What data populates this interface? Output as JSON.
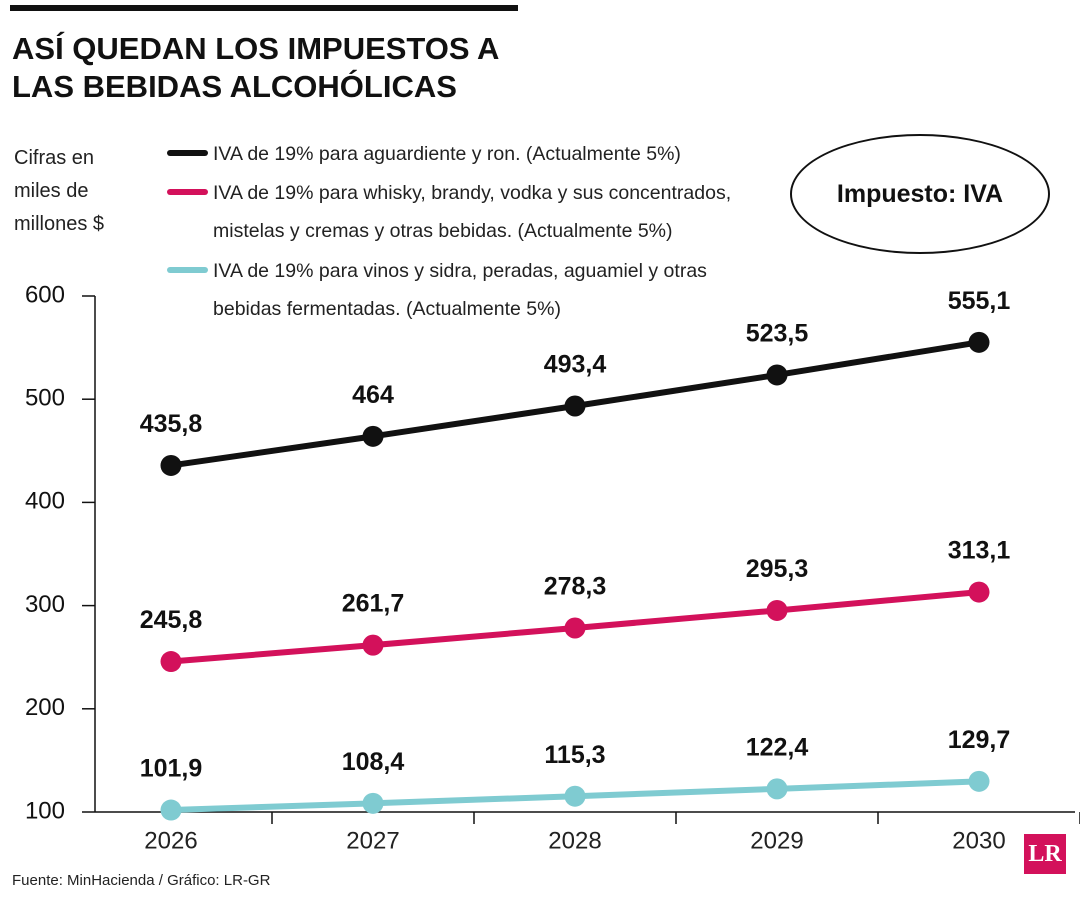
{
  "chart_data": {
    "type": "line",
    "title": "ASÍ QUEDAN LOS IMPUESTOS A LAS BEBIDAS ALCOHÓLICAS",
    "ylabel": "Cifras en miles de millones $",
    "annotation": "Impuesto: IVA",
    "source": "Fuente: MinHacienda / Gráfico: LR-GR",
    "logo": "LR",
    "categories": [
      "2026",
      "2027",
      "2028",
      "2029",
      "2030"
    ],
    "series": [
      {
        "name": "IVA de 19% para aguardiente y ron. (Actualmente 5%)",
        "color": "#111111",
        "values": [
          435.8,
          464,
          493.4,
          523.5,
          555.1
        ],
        "value_labels": [
          "435,8",
          "464",
          "493,4",
          "523,5",
          "555,1"
        ]
      },
      {
        "name": "IVA de 19% para whisky, brandy, vodka y sus concentrados, mistelas y cremas y otras bebidas. (Actualmente 5%)",
        "color": "#d3115b",
        "values": [
          245.8,
          261.7,
          278.3,
          295.3,
          313.1
        ],
        "value_labels": [
          "245,8",
          "261,7",
          "278,3",
          "295,3",
          "313,1"
        ]
      },
      {
        "name": "IVA de 19% para vinos y sidra, peradas, aguamiel y otras bebidas fermentadas. (Actualmente 5%)",
        "color": "#7fcbd1",
        "values": [
          101.9,
          108.4,
          115.3,
          122.4,
          129.7
        ],
        "value_labels": [
          "101,9",
          "108,4",
          "115,3",
          "122,4",
          "129,7"
        ]
      }
    ],
    "ylim": [
      100,
      600
    ],
    "yticks": [
      100,
      200,
      300,
      400,
      500,
      600
    ],
    "grid": false
  }
}
